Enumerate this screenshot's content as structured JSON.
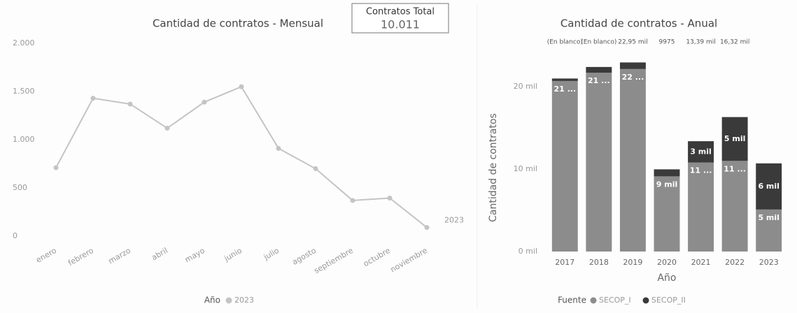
{
  "card": {
    "title": "Contratos Total",
    "value": "10.011"
  },
  "chart_data": [
    {
      "type": "line",
      "title": "Cantidad de contratos - Mensual",
      "categories": [
        "enero",
        "febrero",
        "marzo",
        "abril",
        "mayo",
        "junio",
        "julio",
        "agosto",
        "septiembre",
        "octubre",
        "noviembre"
      ],
      "series": [
        {
          "name": "2023",
          "color": "#c4c4c4",
          "values": [
            710,
            1430,
            1370,
            1120,
            1390,
            1550,
            910,
            700,
            370,
            395,
            90
          ]
        }
      ],
      "ylim": [
        0,
        2000
      ],
      "yticks": [
        0,
        500,
        {
          "value": 1000,
          "label": "1.000"
        },
        {
          "value": 1500,
          "label": "1.500"
        },
        {
          "value": 2000,
          "label": "2.000"
        }
      ],
      "legend_title": "Año",
      "legend": "bottom"
    },
    {
      "type": "stacked_bar",
      "title": "Cantidad de contratos - Anual",
      "categories": [
        "2017",
        "2018",
        "2019",
        "2020",
        "2021",
        "2022",
        "2023"
      ],
      "series": [
        {
          "name": "SECOP_I",
          "color": "#8c8c8c",
          "values": [
            20700,
            21700,
            22150,
            9125,
            10800,
            11000,
            5100
          ],
          "value_labels": [
            "21 ...",
            "21 ...",
            "22 ...",
            "9 mil",
            "11 ...",
            "11 ...",
            "5 mil"
          ]
        },
        {
          "name": "SECOP_II",
          "color": "#3a3a3a",
          "values": [
            300,
            700,
            800,
            850,
            2590,
            5320,
            5600
          ],
          "value_labels": [
            null,
            null,
            null,
            null,
            "3 mil",
            "5 mil",
            "6 mil"
          ]
        }
      ],
      "total_labels": [
        "(En blanco)",
        "(En blanco)",
        "22,95 mil",
        "9975",
        "13,39 mil",
        "16,32 mil",
        null
      ],
      "ylim": [
        0,
        24000
      ],
      "yticks": [
        {
          "value": 0,
          "label": "0 mil"
        },
        {
          "value": 10000,
          "label": "10 mil"
        },
        {
          "value": 20000,
          "label": "20 mil"
        }
      ],
      "y_label": "Cantidad de contratos",
      "x_label": "Año",
      "legend_title": "Fuente",
      "legend": "bottom"
    }
  ]
}
